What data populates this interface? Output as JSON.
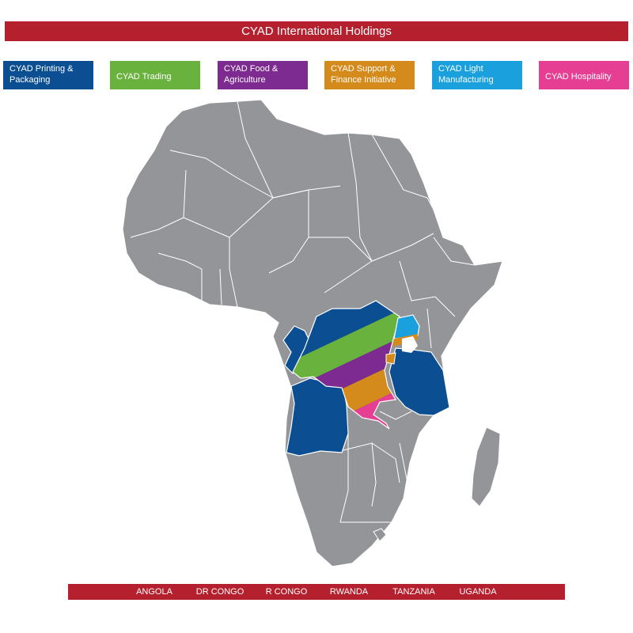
{
  "header": {
    "title": "CYAD International Holdings"
  },
  "colors": {
    "title_bar": "#b5202e",
    "country_bar": "#b5202e",
    "land": "#939598",
    "border": "#ffffff"
  },
  "legend": [
    {
      "label": "CYAD Printing & Packaging",
      "color": "#0b4f92"
    },
    {
      "label": "CYAD Trading",
      "color": "#6ab23e"
    },
    {
      "label": "CYAD Food & Agriculture",
      "color": "#7d2a91"
    },
    {
      "label": "CYAD Support & Finance Initiative",
      "color": "#d58a1c"
    },
    {
      "label": "CYAD Light Manufacturing",
      "color": "#1aa0dc"
    },
    {
      "label": "CYAD Hospitality",
      "color": "#e53e93"
    }
  ],
  "countries": [
    "ANGOLA",
    "DR CONGO",
    "R CONGO",
    "RWANDA",
    "TANZANIA",
    "UGANDA"
  ]
}
